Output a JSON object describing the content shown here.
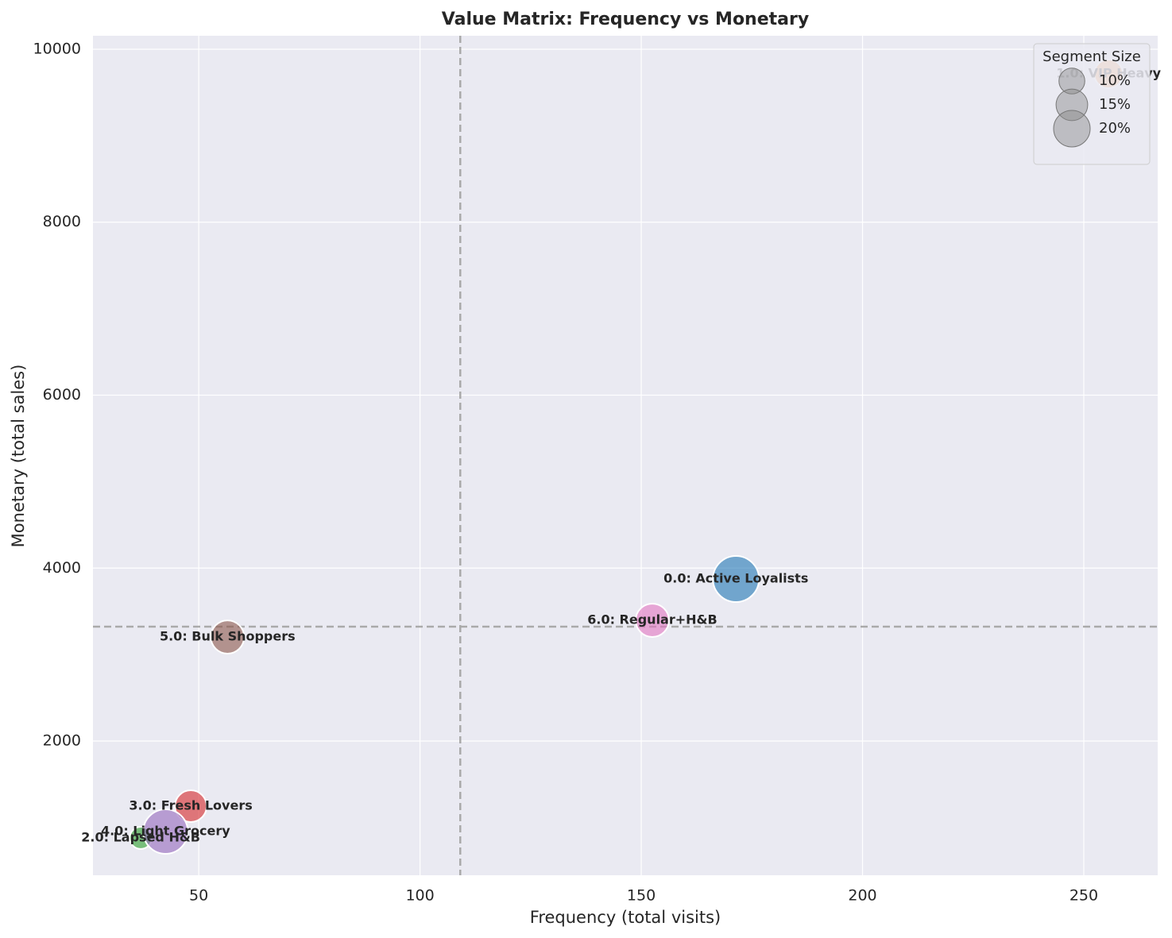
{
  "chart_data": {
    "type": "bubble",
    "title": "Value Matrix: Frequency vs Monetary",
    "x_label": "Frequency (total visits)",
    "y_label": "Monetary (total sales)",
    "categories": [
      "0.0: Active Loyalists",
      "1.0: VIP Heavy",
      "2.0: Lapsed H&B",
      "3.0: Fresh Lovers",
      "4.0: Light Grocery",
      "5.0: Bulk Shoppers",
      "6.0: Regular+H&B"
    ],
    "x": [
      171.4,
      255.6,
      36.9,
      48.2,
      42.5,
      56.5,
      152.5
    ],
    "values": [
      3874,
      9715,
      880,
      1247,
      953,
      3203,
      3396
    ],
    "sizes": [
      16.5,
      6.4,
      3.8,
      7.8,
      15.4,
      8.6,
      8.6
    ],
    "colors": [
      "#1f77b4",
      "#ff7f0e",
      "#2ca02c",
      "#d62728",
      "#9467bd",
      "#8c564b",
      "#e377c2"
    ],
    "xlim": [
      26.1,
      266.7
    ],
    "ylim": [
      448,
      10156
    ],
    "xticks": [
      50,
      100,
      150,
      200,
      250
    ],
    "yticks": [
      2000,
      4000,
      6000,
      8000,
      10000
    ],
    "x_reference": 109.1,
    "y_reference": 3323,
    "grid": true,
    "legend_title": "Segment Size",
    "legend_position": "upper-right",
    "size_legend": [
      {
        "value": 10,
        "label": "10%"
      },
      {
        "value": 15,
        "label": "15%"
      },
      {
        "value": 20,
        "label": "20%"
      }
    ]
  }
}
